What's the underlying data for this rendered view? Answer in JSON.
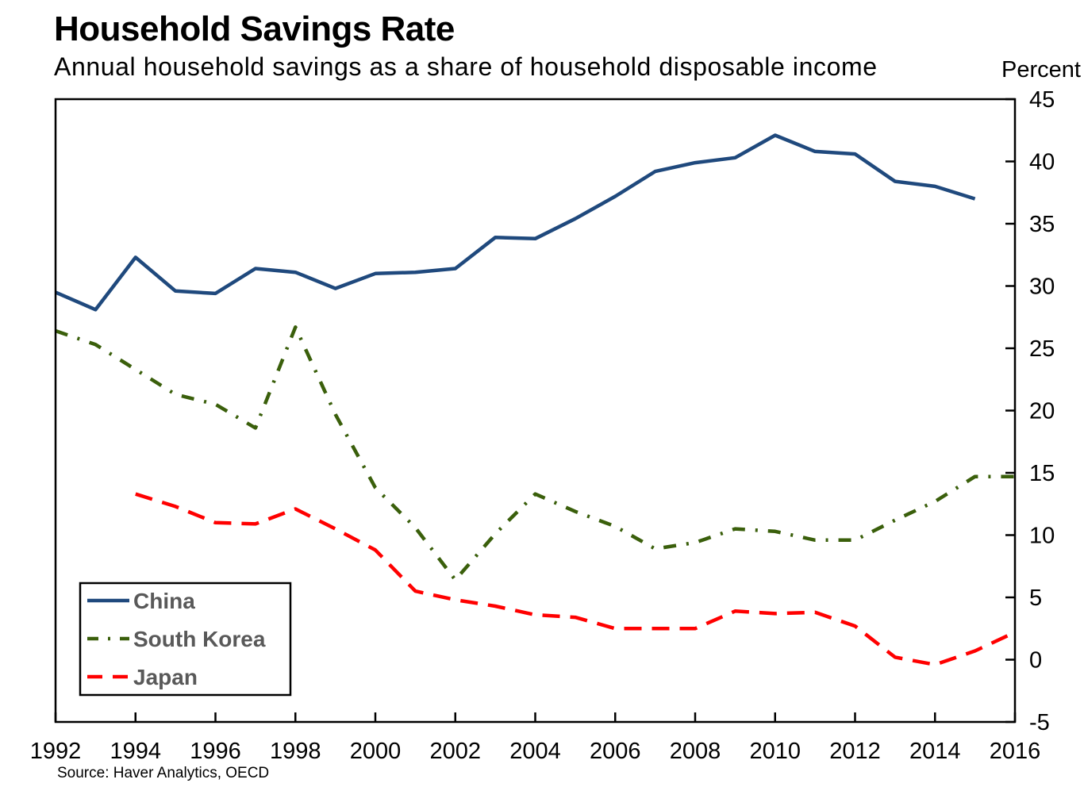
{
  "header": {
    "title": "Household Savings Rate",
    "subtitle": "Annual household savings as a share of household disposable income",
    "unit": "Percent"
  },
  "footer": {
    "source": "Source: Haver Analytics, OECD"
  },
  "chart_data": {
    "type": "line",
    "title": "Household Savings Rate",
    "subtitle": "Annual household savings as a share of household disposable income",
    "ylabel": "Percent",
    "xlim": [
      1992,
      2016
    ],
    "ylim": [
      -5,
      45
    ],
    "x_ticks": [
      "1992",
      "1994",
      "1996",
      "1998",
      "2000",
      "2002",
      "2004",
      "2006",
      "2008",
      "2010",
      "2012",
      "2014",
      "2016"
    ],
    "y_ticks": [
      "45",
      "40",
      "35",
      "30",
      "25",
      "20",
      "15",
      "10",
      "5",
      "0",
      "-5"
    ],
    "y_axis_side": "right",
    "grid": false,
    "legend_position": "bottom-left",
    "series": [
      {
        "name": "China",
        "color": "#1f497d",
        "style": "solid",
        "points": [
          [
            1992,
            29.5
          ],
          [
            1993,
            28.1
          ],
          [
            1994,
            32.3
          ],
          [
            1995,
            29.6
          ],
          [
            1996,
            29.4
          ],
          [
            1997,
            31.4
          ],
          [
            1998,
            31.1
          ],
          [
            1999,
            29.8
          ],
          [
            2000,
            31.0
          ],
          [
            2001,
            31.1
          ],
          [
            2002,
            31.4
          ],
          [
            2003,
            33.9
          ],
          [
            2004,
            33.8
          ],
          [
            2005,
            35.4
          ],
          [
            2006,
            37.2
          ],
          [
            2007,
            39.2
          ],
          [
            2008,
            39.9
          ],
          [
            2009,
            40.3
          ],
          [
            2010,
            42.1
          ],
          [
            2011,
            40.8
          ],
          [
            2012,
            40.6
          ],
          [
            2013,
            38.4
          ],
          [
            2014,
            38.0
          ],
          [
            2015,
            37.0
          ]
        ]
      },
      {
        "name": "South Korea",
        "color": "#3a5f0b",
        "style": "dash-dot",
        "points": [
          [
            1992,
            26.4
          ],
          [
            1993,
            25.3
          ],
          [
            1994,
            23.3
          ],
          [
            1995,
            21.3
          ],
          [
            1996,
            20.5
          ],
          [
            1997,
            18.6
          ],
          [
            1998,
            26.7
          ],
          [
            1999,
            19.7
          ],
          [
            2000,
            13.8
          ],
          [
            2001,
            10.6
          ],
          [
            2002,
            6.4
          ],
          [
            2003,
            10.1
          ],
          [
            2004,
            13.3
          ],
          [
            2005,
            11.9
          ],
          [
            2006,
            10.7
          ],
          [
            2007,
            8.9
          ],
          [
            2008,
            9.4
          ],
          [
            2009,
            10.5
          ],
          [
            2010,
            10.3
          ],
          [
            2011,
            9.6
          ],
          [
            2012,
            9.6
          ],
          [
            2013,
            11.2
          ],
          [
            2014,
            12.7
          ],
          [
            2015,
            14.7
          ],
          [
            2016,
            14.7
          ]
        ]
      },
      {
        "name": "Japan",
        "color": "#ff0000",
        "style": "dashed",
        "points": [
          [
            1994,
            13.3
          ],
          [
            1995,
            12.3
          ],
          [
            1996,
            11.0
          ],
          [
            1997,
            10.9
          ],
          [
            1998,
            12.1
          ],
          [
            1999,
            10.5
          ],
          [
            2000,
            8.8
          ],
          [
            2001,
            5.5
          ],
          [
            2002,
            4.8
          ],
          [
            2003,
            4.3
          ],
          [
            2004,
            3.6
          ],
          [
            2005,
            3.4
          ],
          [
            2006,
            2.5
          ],
          [
            2007,
            2.5
          ],
          [
            2008,
            2.5
          ],
          [
            2009,
            3.9
          ],
          [
            2010,
            3.7
          ],
          [
            2011,
            3.8
          ],
          [
            2012,
            2.7
          ],
          [
            2013,
            0.2
          ],
          [
            2014,
            -0.4
          ],
          [
            2015,
            0.7
          ],
          [
            2016,
            2.2
          ]
        ]
      }
    ]
  }
}
